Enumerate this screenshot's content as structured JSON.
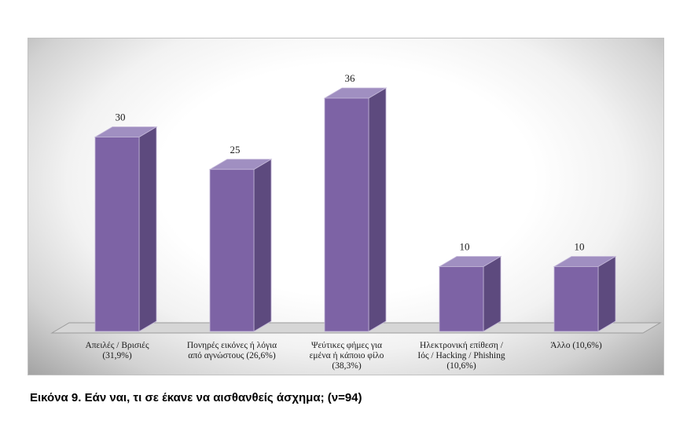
{
  "figure": {
    "caption": "Εικόνα 9. Εάν ναι, τι σε έκανε να αισθανθείς άσχημα; (ν=94)"
  },
  "chart_data": {
    "type": "bar",
    "style": "3d-column",
    "title": "",
    "xlabel": "",
    "ylabel": "",
    "n_label": "ν=94",
    "categories": [
      "Απειλές / Βρισιές (31,9%)",
      "Πονηρές εικόνες ή λόγια από αγνώστους (26,6%)",
      "Ψεύτικες φήμες για εμένα ή κάποιο φίλο (38,3%)",
      "Ηλεκτρονική επίθεση / Ιός / Hacking / Phishing (10,6%)",
      "Άλλο (10,6%)"
    ],
    "category_lines": [
      [
        "Απειλές / Βρισιές",
        "(31,9%)"
      ],
      [
        "Πονηρές εικόνες ή λόγια",
        "από αγνώστους (26,6%)"
      ],
      [
        "Ψεύτικες φήμες για",
        "εμένα ή κάποιο φίλο",
        "(38,3%)"
      ],
      [
        "Ηλεκτρονική επίθεση /",
        "Ιός / Hacking / Phishing",
        "(10,6%)"
      ],
      [
        "Άλλο (10,6%)"
      ]
    ],
    "values": [
      30,
      25,
      36,
      10,
      10
    ],
    "percentages": [
      "31,9%",
      "26,6%",
      "38,3%",
      "10,6%",
      "10,6%"
    ],
    "value_labels_shown": true,
    "ylim": [
      0,
      40
    ],
    "grid": false,
    "legend": "none",
    "colors": {
      "bar_front": "#7d63a5",
      "bar_side": "#5d4a7e",
      "bar_top": "#a08fc1",
      "bar_edge": "#c3b7d8",
      "floor_fill": "#d6d6d6",
      "floor_edge": "#9b9b9b",
      "text": "#1a1a1a"
    }
  }
}
